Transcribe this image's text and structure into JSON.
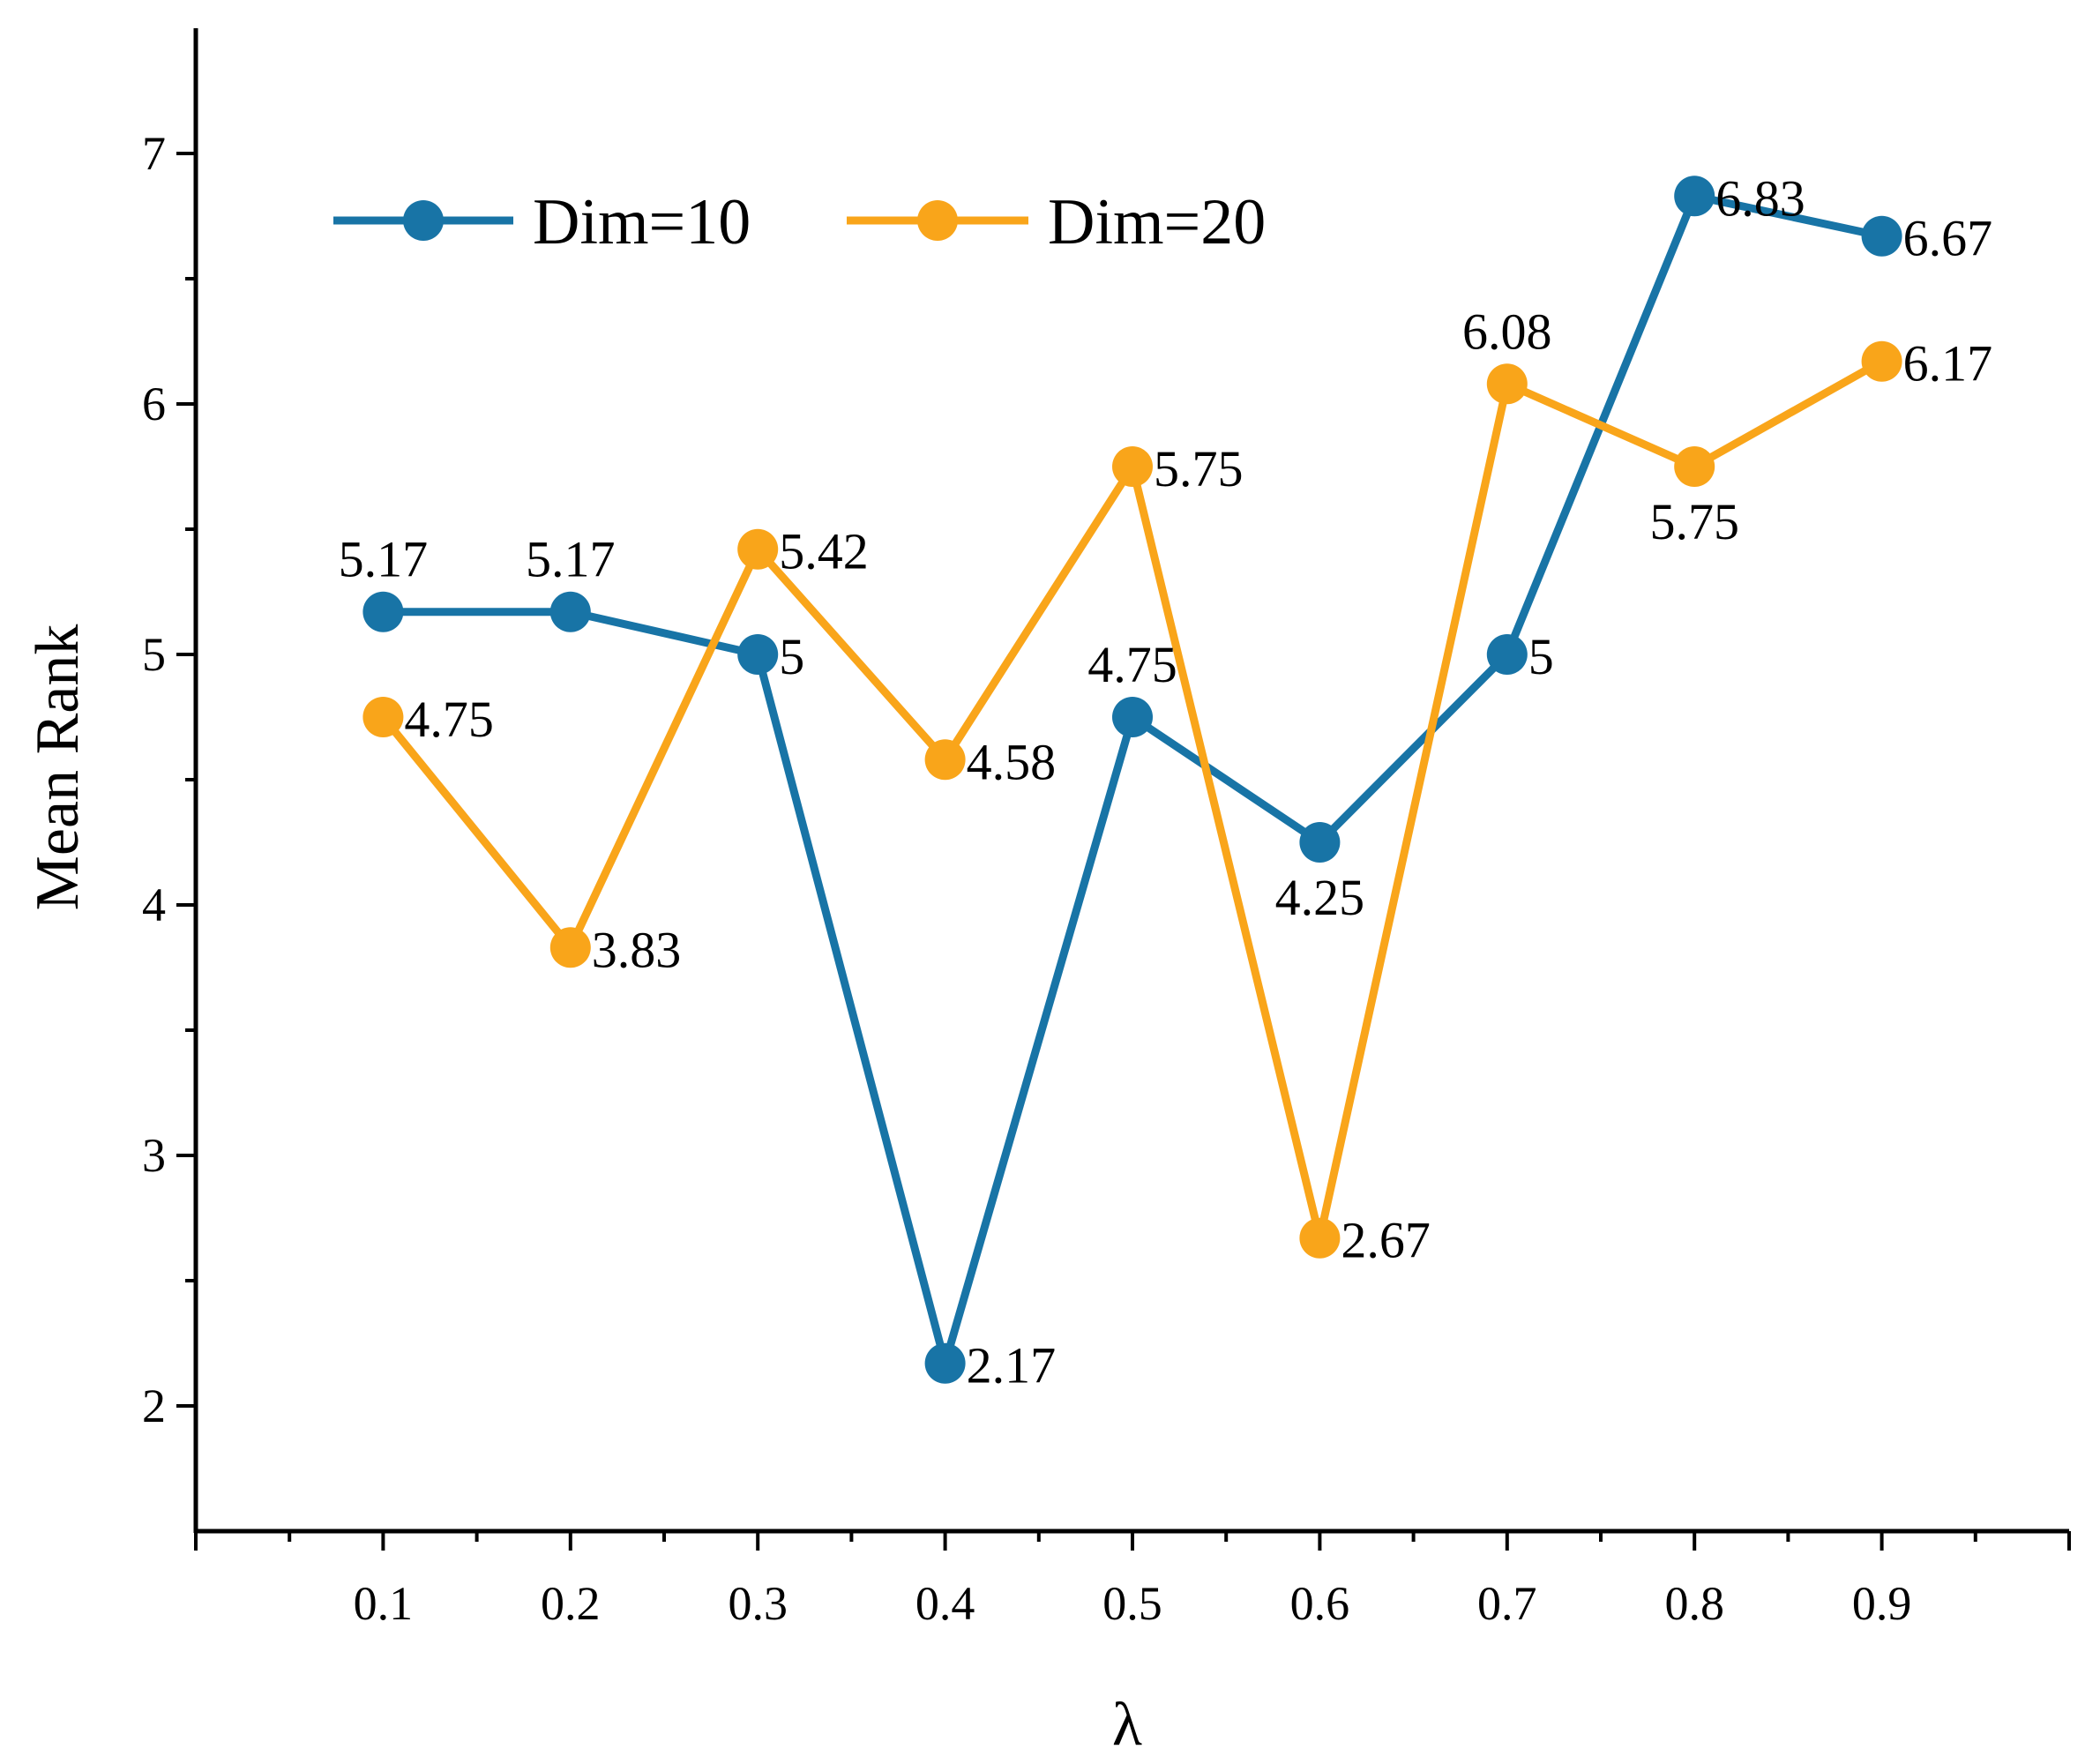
{
  "chart_data": {
    "type": "line",
    "title": "",
    "xlabel": "λ",
    "ylabel": "Mean Rank",
    "xlim": [
      0,
      1
    ],
    "ylim": [
      1.5,
      7.5
    ],
    "x": [
      0.1,
      0.2,
      0.3,
      0.4,
      0.5,
      0.6,
      0.7,
      0.8,
      0.9
    ],
    "x_tick_labels": [
      "0.1",
      "0.2",
      "0.3",
      "0.4",
      "0.5",
      "0.6",
      "0.7",
      "0.8",
      "0.9"
    ],
    "y_ticks": [
      2,
      3,
      4,
      5,
      6,
      7
    ],
    "y_tick_labels": [
      "2",
      "3",
      "4",
      "5",
      "6",
      "7"
    ],
    "grid": false,
    "legend_position": "top-left",
    "series": [
      {
        "name": "Dim=10",
        "color": "#1874a6",
        "values": [
          5.17,
          5.17,
          5.0,
          2.17,
          4.75,
          4.25,
          5.0,
          6.83,
          6.67
        ],
        "labels": [
          "5.17",
          "5.17",
          "5",
          "2.17",
          "4.75",
          "4.25",
          "5",
          "6.83",
          "6.67"
        ],
        "label_positions": [
          "above",
          "above",
          "right",
          "right",
          "above",
          "below",
          "right",
          "right",
          "right"
        ]
      },
      {
        "name": "Dim=20",
        "color": "#f9a51a",
        "values": [
          4.75,
          3.83,
          5.42,
          4.58,
          5.75,
          2.67,
          6.08,
          5.75,
          6.17
        ],
        "labels": [
          "4.75",
          "3.83",
          "5.42",
          "4.58",
          "5.75",
          "2.67",
          "6.08",
          "5.75",
          "6.17"
        ],
        "label_positions": [
          "right",
          "right",
          "right",
          "right",
          "right",
          "right",
          "above",
          "below",
          "right"
        ]
      }
    ]
  }
}
